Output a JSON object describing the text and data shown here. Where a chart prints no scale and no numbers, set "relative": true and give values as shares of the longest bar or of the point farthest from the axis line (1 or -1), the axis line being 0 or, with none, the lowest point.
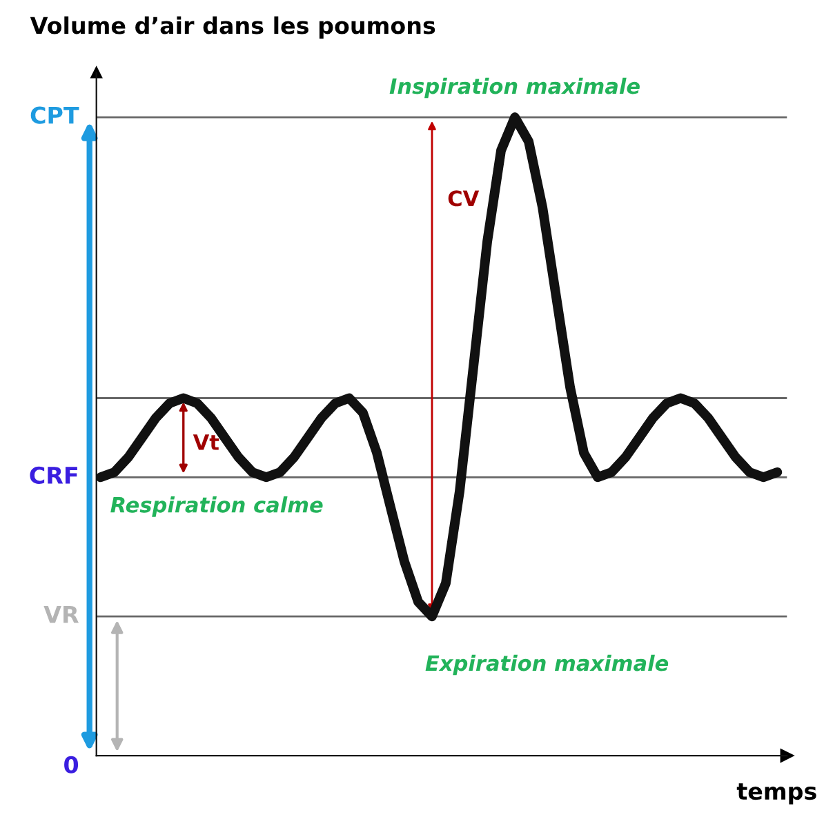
{
  "chart_data": {
    "type": "line",
    "relative": true,
    "ylabel": "Volume d’air dans les poumons",
    "xlabel": "temps",
    "categories": [
      null,
      null,
      null,
      null,
      null,
      null,
      null,
      null,
      null,
      null,
      null,
      null,
      null,
      null,
      null,
      null,
      null,
      null,
      null,
      null,
      null,
      null,
      null,
      null,
      null,
      null,
      null,
      null,
      null,
      null,
      null,
      null,
      null,
      null,
      null,
      null,
      null,
      null,
      null,
      null,
      null,
      null,
      null,
      null,
      null,
      null,
      null,
      null,
      null,
      null
    ],
    "series": [
      {
        "color": "#111111",
        "values": [
          0.436,
          0.444,
          0.467,
          0.498,
          0.529,
          0.552,
          0.56,
          0.552,
          0.529,
          0.498,
          0.467,
          0.444,
          0.436,
          0.444,
          0.467,
          0.498,
          0.529,
          0.552,
          0.56,
          0.537,
          0.475,
          0.389,
          0.304,
          0.241,
          0.218,
          0.27,
          0.414,
          0.609,
          0.805,
          0.948,
          1,
          0.962,
          0.859,
          0.718,
          0.577,
          0.474,
          0.436,
          0.444,
          0.467,
          0.498,
          0.529,
          0.552,
          0.56,
          0.552,
          0.529,
          0.498,
          0.467,
          0.444,
          0.436,
          0.444
        ]
      }
    ],
    "ref_lines": [
      {
        "axis": "y",
        "value": 1,
        "label": "CPT",
        "color": "#666666"
      },
      {
        "axis": "y",
        "value": 0.56,
        "color": "#666666"
      },
      {
        "axis": "y",
        "value": 0.436,
        "label": "CRF",
        "color": "#666666"
      },
      {
        "axis": "y",
        "value": 0.218,
        "label": "VR",
        "color": "#666666"
      },
      {
        "axis": "y",
        "value": 0,
        "label": "0"
      }
    ],
    "annotations": [
      {
        "text": "Inspiration maximale",
        "y": 1
      },
      {
        "text": "Respiration calme",
        "y": 0.436
      },
      {
        "text": "Expiration maximale",
        "y": 0.218
      },
      "CV",
      "Vt"
    ],
    "legend": false,
    "grid": false,
    "marker": "none",
    "line_style": "solid"
  }
}
